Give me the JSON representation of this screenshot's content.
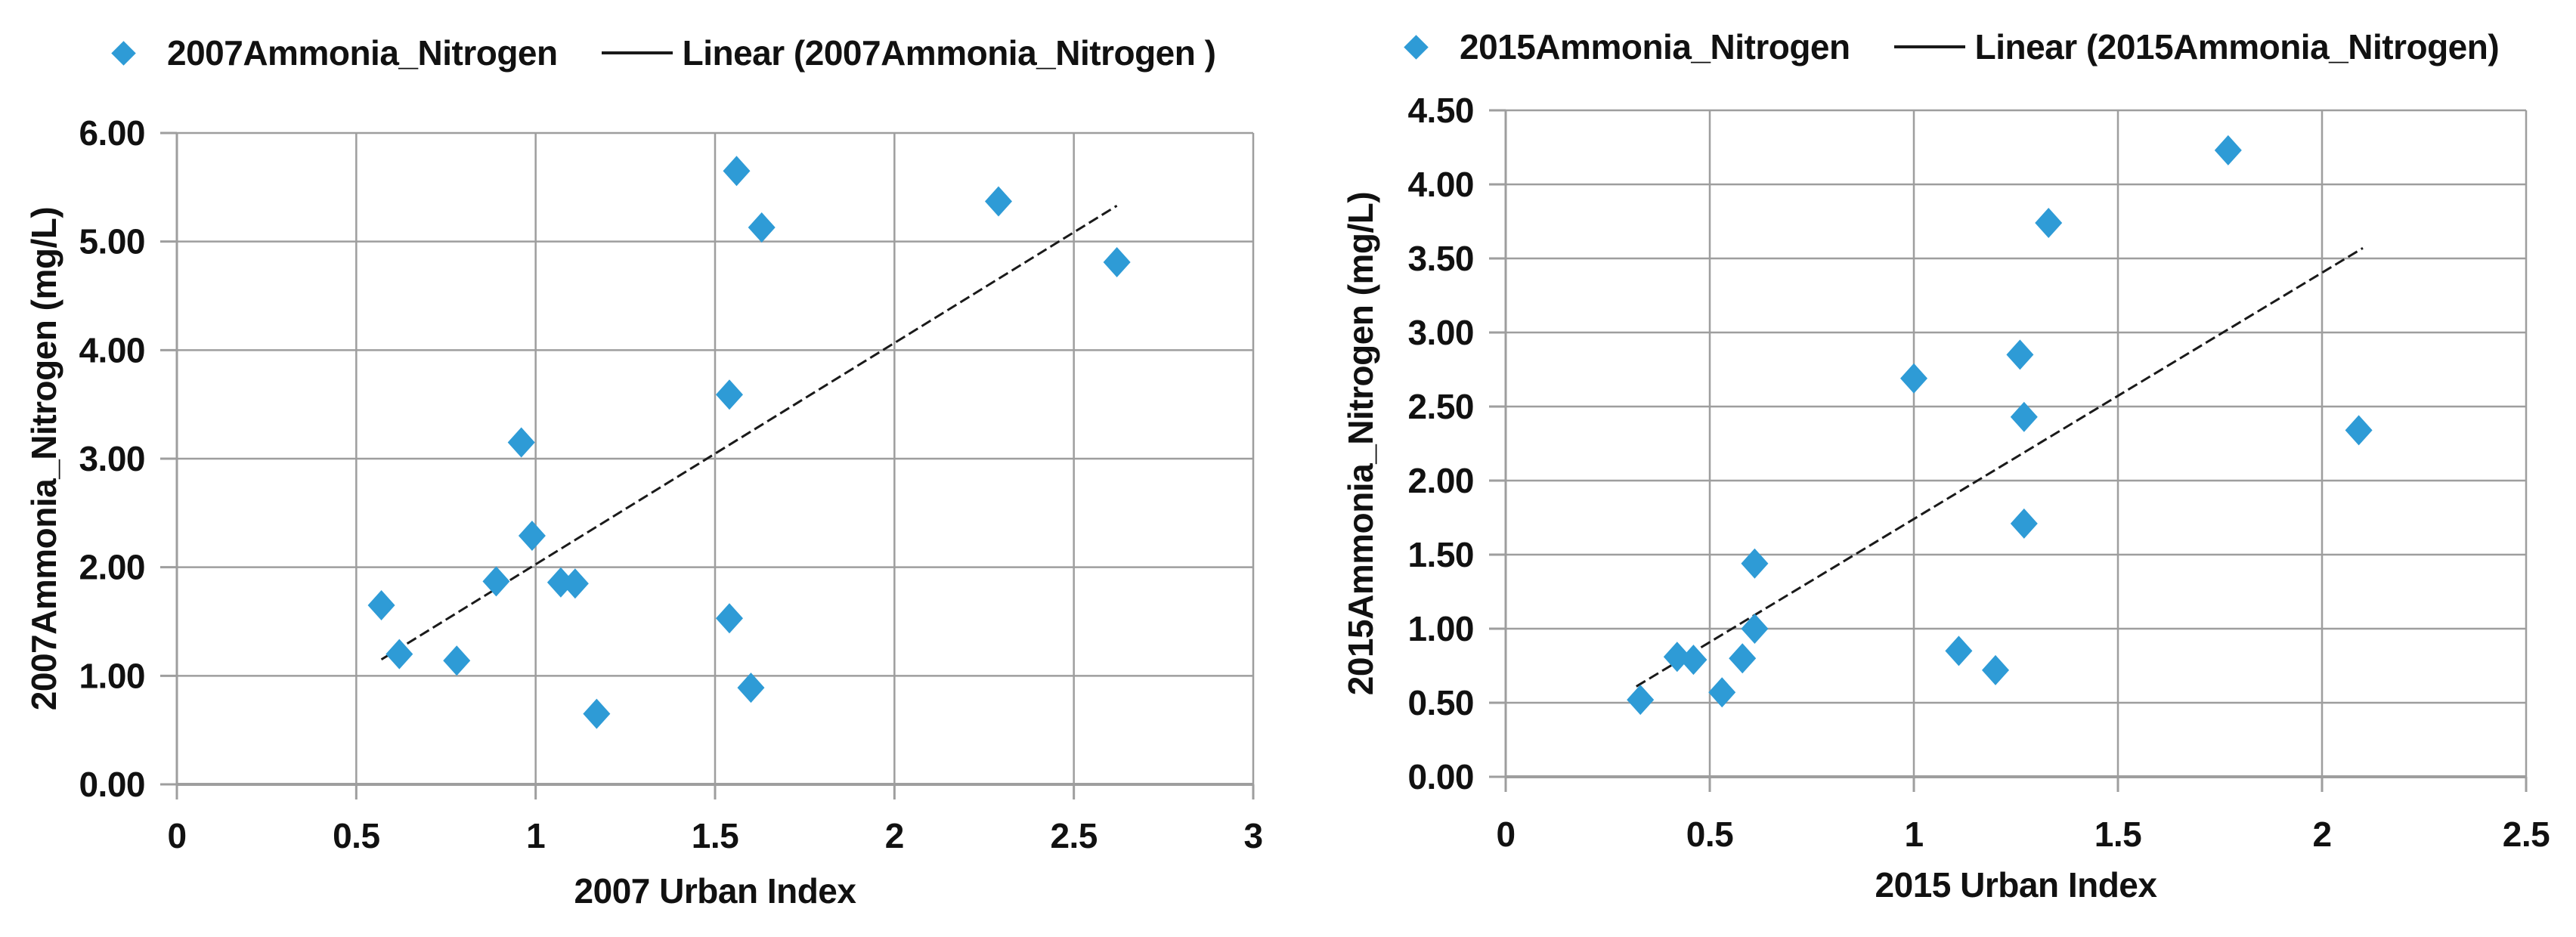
{
  "colors": {
    "marker": "#2E9BD6",
    "trendline": "#1A1A1A",
    "gridline": "#9E9E9E",
    "axis_line": "#9E9E9E",
    "text": "#111111",
    "background": "#FFFFFF"
  },
  "chart_data": [
    {
      "type": "scatter",
      "title": "",
      "xlabel": "2007 Urban Index",
      "ylabel": "2007Ammonia_Nitrogen (mg/L)",
      "legend": [
        "2007Ammonia_Nitrogen",
        "Linear (2007Ammonia_Nitrogen )"
      ],
      "legend_position": "top",
      "grid": true,
      "xlim": [
        0,
        3
      ],
      "ylim": [
        0,
        6
      ],
      "xticks": [
        "0",
        "0.5",
        "1",
        "1.5",
        "2",
        "2.5",
        "3"
      ],
      "yticks": [
        "0.00",
        "1.00",
        "2.00",
        "3.00",
        "4.00",
        "5.00",
        "6.00"
      ],
      "points": [
        [
          0.57,
          1.65
        ],
        [
          0.62,
          1.2
        ],
        [
          0.78,
          1.14
        ],
        [
          0.89,
          1.87
        ],
        [
          0.96,
          3.15
        ],
        [
          0.99,
          2.29
        ],
        [
          1.07,
          1.86
        ],
        [
          1.11,
          1.85
        ],
        [
          1.17,
          0.65
        ],
        [
          1.54,
          3.59
        ],
        [
          1.54,
          1.53
        ],
        [
          1.56,
          5.65
        ],
        [
          1.6,
          0.89
        ],
        [
          1.63,
          5.13
        ],
        [
          2.29,
          5.37
        ],
        [
          2.62,
          4.81
        ]
      ],
      "trendline": {
        "x1": 0.57,
        "y1": 1.15,
        "x2": 2.62,
        "y2": 5.33
      }
    },
    {
      "type": "scatter",
      "title": "",
      "xlabel": "2015 Urban Index",
      "ylabel": "2015Ammonia_Nitrogen (mg/L)",
      "legend": [
        "2015Ammonia_Nitrogen",
        "Linear (2015Ammonia_Nitrogen)"
      ],
      "legend_position": "top",
      "grid": true,
      "xlim": [
        0,
        2.5
      ],
      "ylim": [
        0,
        4.5
      ],
      "xticks": [
        "0",
        "0.5",
        "1",
        "1.5",
        "2",
        "2.5"
      ],
      "yticks": [
        "0.00",
        "0.50",
        "1.00",
        "1.50",
        "2.00",
        "2.50",
        "3.00",
        "3.50",
        "4.00",
        "4.50"
      ],
      "points": [
        [
          0.33,
          0.52
        ],
        [
          0.42,
          0.81
        ],
        [
          0.46,
          0.79
        ],
        [
          0.53,
          0.57
        ],
        [
          0.58,
          0.8
        ],
        [
          0.61,
          1.0
        ],
        [
          0.61,
          1.44
        ],
        [
          1.0,
          2.69
        ],
        [
          1.11,
          0.85
        ],
        [
          1.2,
          0.72
        ],
        [
          1.26,
          2.85
        ],
        [
          1.27,
          2.43
        ],
        [
          1.27,
          1.71
        ],
        [
          1.33,
          3.74
        ],
        [
          1.77,
          4.23
        ],
        [
          2.09,
          2.34
        ]
      ],
      "trendline": {
        "x1": 0.32,
        "y1": 0.61,
        "x2": 2.1,
        "y2": 3.57
      }
    }
  ]
}
